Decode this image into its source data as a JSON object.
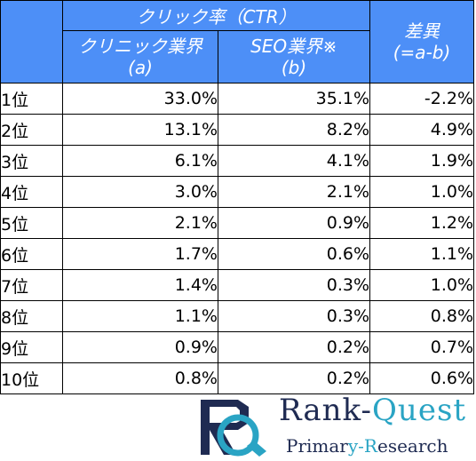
{
  "table": {
    "header_group": "クリック率（CTR）",
    "col_a_line1": "クリニック業界",
    "col_a_line2": "(a)",
    "col_b_line1": "SEO業界※",
    "col_b_line2": "(b)",
    "diff_line1": "差異",
    "diff_line2": "(=a-b)",
    "rows": [
      {
        "rank": "1位",
        "a": "33.0%",
        "b": "35.1%",
        "diff": "-2.2%"
      },
      {
        "rank": "2位",
        "a": "13.1%",
        "b": "8.2%",
        "diff": "4.9%"
      },
      {
        "rank": "3位",
        "a": "6.1%",
        "b": "4.1%",
        "diff": "1.9%"
      },
      {
        "rank": "4位",
        "a": "3.0%",
        "b": "2.1%",
        "diff": "1.0%"
      },
      {
        "rank": "5位",
        "a": "2.1%",
        "b": "0.9%",
        "diff": "1.2%"
      },
      {
        "rank": "6位",
        "a": "1.7%",
        "b": "0.6%",
        "diff": "1.1%"
      },
      {
        "rank": "7位",
        "a": "1.4%",
        "b": "0.3%",
        "diff": "1.0%"
      },
      {
        "rank": "8位",
        "a": "1.1%",
        "b": "0.3%",
        "diff": "0.8%"
      },
      {
        "rank": "9位",
        "a": "0.9%",
        "b": "0.2%",
        "diff": "0.7%"
      },
      {
        "rank": "10位",
        "a": "0.8%",
        "b": "0.2%",
        "diff": "0.6%"
      }
    ]
  },
  "logo": {
    "brand_part1": "Rank-",
    "brand_part2": "Quest",
    "tagline_part1": "Primar",
    "tagline_part2": "y-R",
    "tagline_part3": "esearch"
  },
  "colors": {
    "header_bg": "#4d8ff7",
    "brand_navy": "#1f2b52",
    "brand_teal": "#2aa4c4"
  }
}
